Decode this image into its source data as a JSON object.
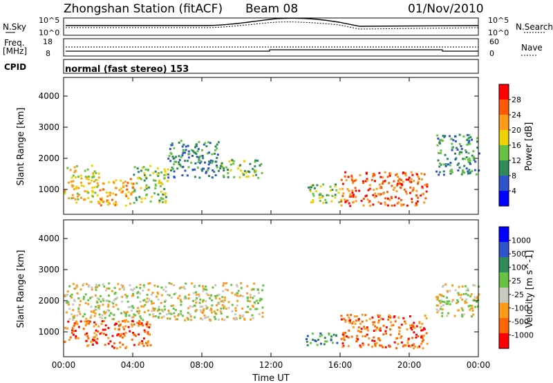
{
  "header": {
    "station": "Zhongshan Station (fitACF)",
    "beam": "Beam 08",
    "date": "01/Nov/2010"
  },
  "strip": {
    "nsky_label": "N.Sky",
    "nsky_ticks": [
      "10^5",
      "10^0"
    ],
    "nsearch_label": "N.Search",
    "nsearch_ticks": [
      "10^5",
      "10^0"
    ],
    "freq_label_1": "Freq.",
    "freq_label_2": "[MHz]",
    "freq_ticks": [
      "18",
      "8"
    ],
    "nave_label": "Nave",
    "nave_ticks": [
      "60",
      "0"
    ],
    "cpid_label": "CPID",
    "cpid_value": "normal (fast stereo) 153"
  },
  "chart_data": [
    {
      "type": "heatmap",
      "ylabel": "Slant Range [km]",
      "xlabel": "Time UT",
      "xticks": [
        "00:00",
        "04:00",
        "08:00",
        "12:00",
        "16:00",
        "20:00",
        "00:00"
      ],
      "yticks": [
        "1000",
        "2000",
        "3000",
        "4000"
      ],
      "ylim": [
        200,
        4600
      ],
      "xlim_hours": [
        0,
        24
      ],
      "colorbar": {
        "label": "Power [dB]",
        "ticks": [
          "28",
          "24",
          "20",
          "16",
          "12",
          "8",
          "4"
        ],
        "colors": [
          "#0000ff",
          "#2b55c8",
          "#2e8b57",
          "#66c242",
          "#f0d000",
          "#ff9a1a",
          "#ff5a00",
          "#ff0000"
        ]
      },
      "scatter_regions_hours_km": [
        {
          "t": [
            0.0,
            2.0
          ],
          "r": [
            600,
            1800
          ],
          "color_index": 4
        },
        {
          "t": [
            2.0,
            4.0
          ],
          "r": [
            500,
            1400
          ],
          "color_index": 5
        },
        {
          "t": [
            4.0,
            6.0
          ],
          "r": [
            600,
            1800
          ],
          "color_index": 3
        },
        {
          "t": [
            6.0,
            9.0
          ],
          "r": [
            1400,
            2600
          ],
          "color_index": 2
        },
        {
          "t": [
            9.0,
            11.5
          ],
          "r": [
            1400,
            2000
          ],
          "color_index": 3
        },
        {
          "t": [
            14.0,
            16.0
          ],
          "r": [
            600,
            1200
          ],
          "color_index": 3
        },
        {
          "t": [
            16.0,
            21.0
          ],
          "r": [
            500,
            1600
          ],
          "color_index": 6
        },
        {
          "t": [
            21.5,
            24.0
          ],
          "r": [
            1500,
            2800
          ],
          "color_index": 2
        }
      ]
    },
    {
      "type": "heatmap",
      "ylabel": "Slant Range [km]",
      "xlabel": "Time UT",
      "xticks": [
        "00:00",
        "04:00",
        "08:00",
        "12:00",
        "16:00",
        "20:00",
        "00:00"
      ],
      "yticks": [
        "1000",
        "2000",
        "3000",
        "4000"
      ],
      "ylim": [
        200,
        4600
      ],
      "colorbar": {
        "label": "Velocity [m s^-1]",
        "ticks": [
          "1000",
          "500",
          "100",
          "25",
          "-25",
          "-100",
          "-500",
          "-1000"
        ],
        "colors": [
          "#ff0000",
          "#ff6600",
          "#ff9a1a",
          "#c8c8be",
          "#66c242",
          "#2e8b57",
          "#2b55c8",
          "#0000ff"
        ]
      },
      "scatter_regions_hours_km": [
        {
          "t": [
            0.0,
            5.0
          ],
          "r": [
            500,
            1400
          ],
          "color_index": 1
        },
        {
          "t": [
            0.0,
            11.5
          ],
          "r": [
            1400,
            2600
          ],
          "color_index": 3
        },
        {
          "t": [
            14.0,
            16.0
          ],
          "r": [
            600,
            1000
          ],
          "color_index": 5
        },
        {
          "t": [
            16.0,
            21.0
          ],
          "r": [
            500,
            1600
          ],
          "color_index": 1
        },
        {
          "t": [
            21.5,
            24.0
          ],
          "r": [
            1500,
            2600
          ],
          "color_index": 3
        }
      ]
    }
  ]
}
